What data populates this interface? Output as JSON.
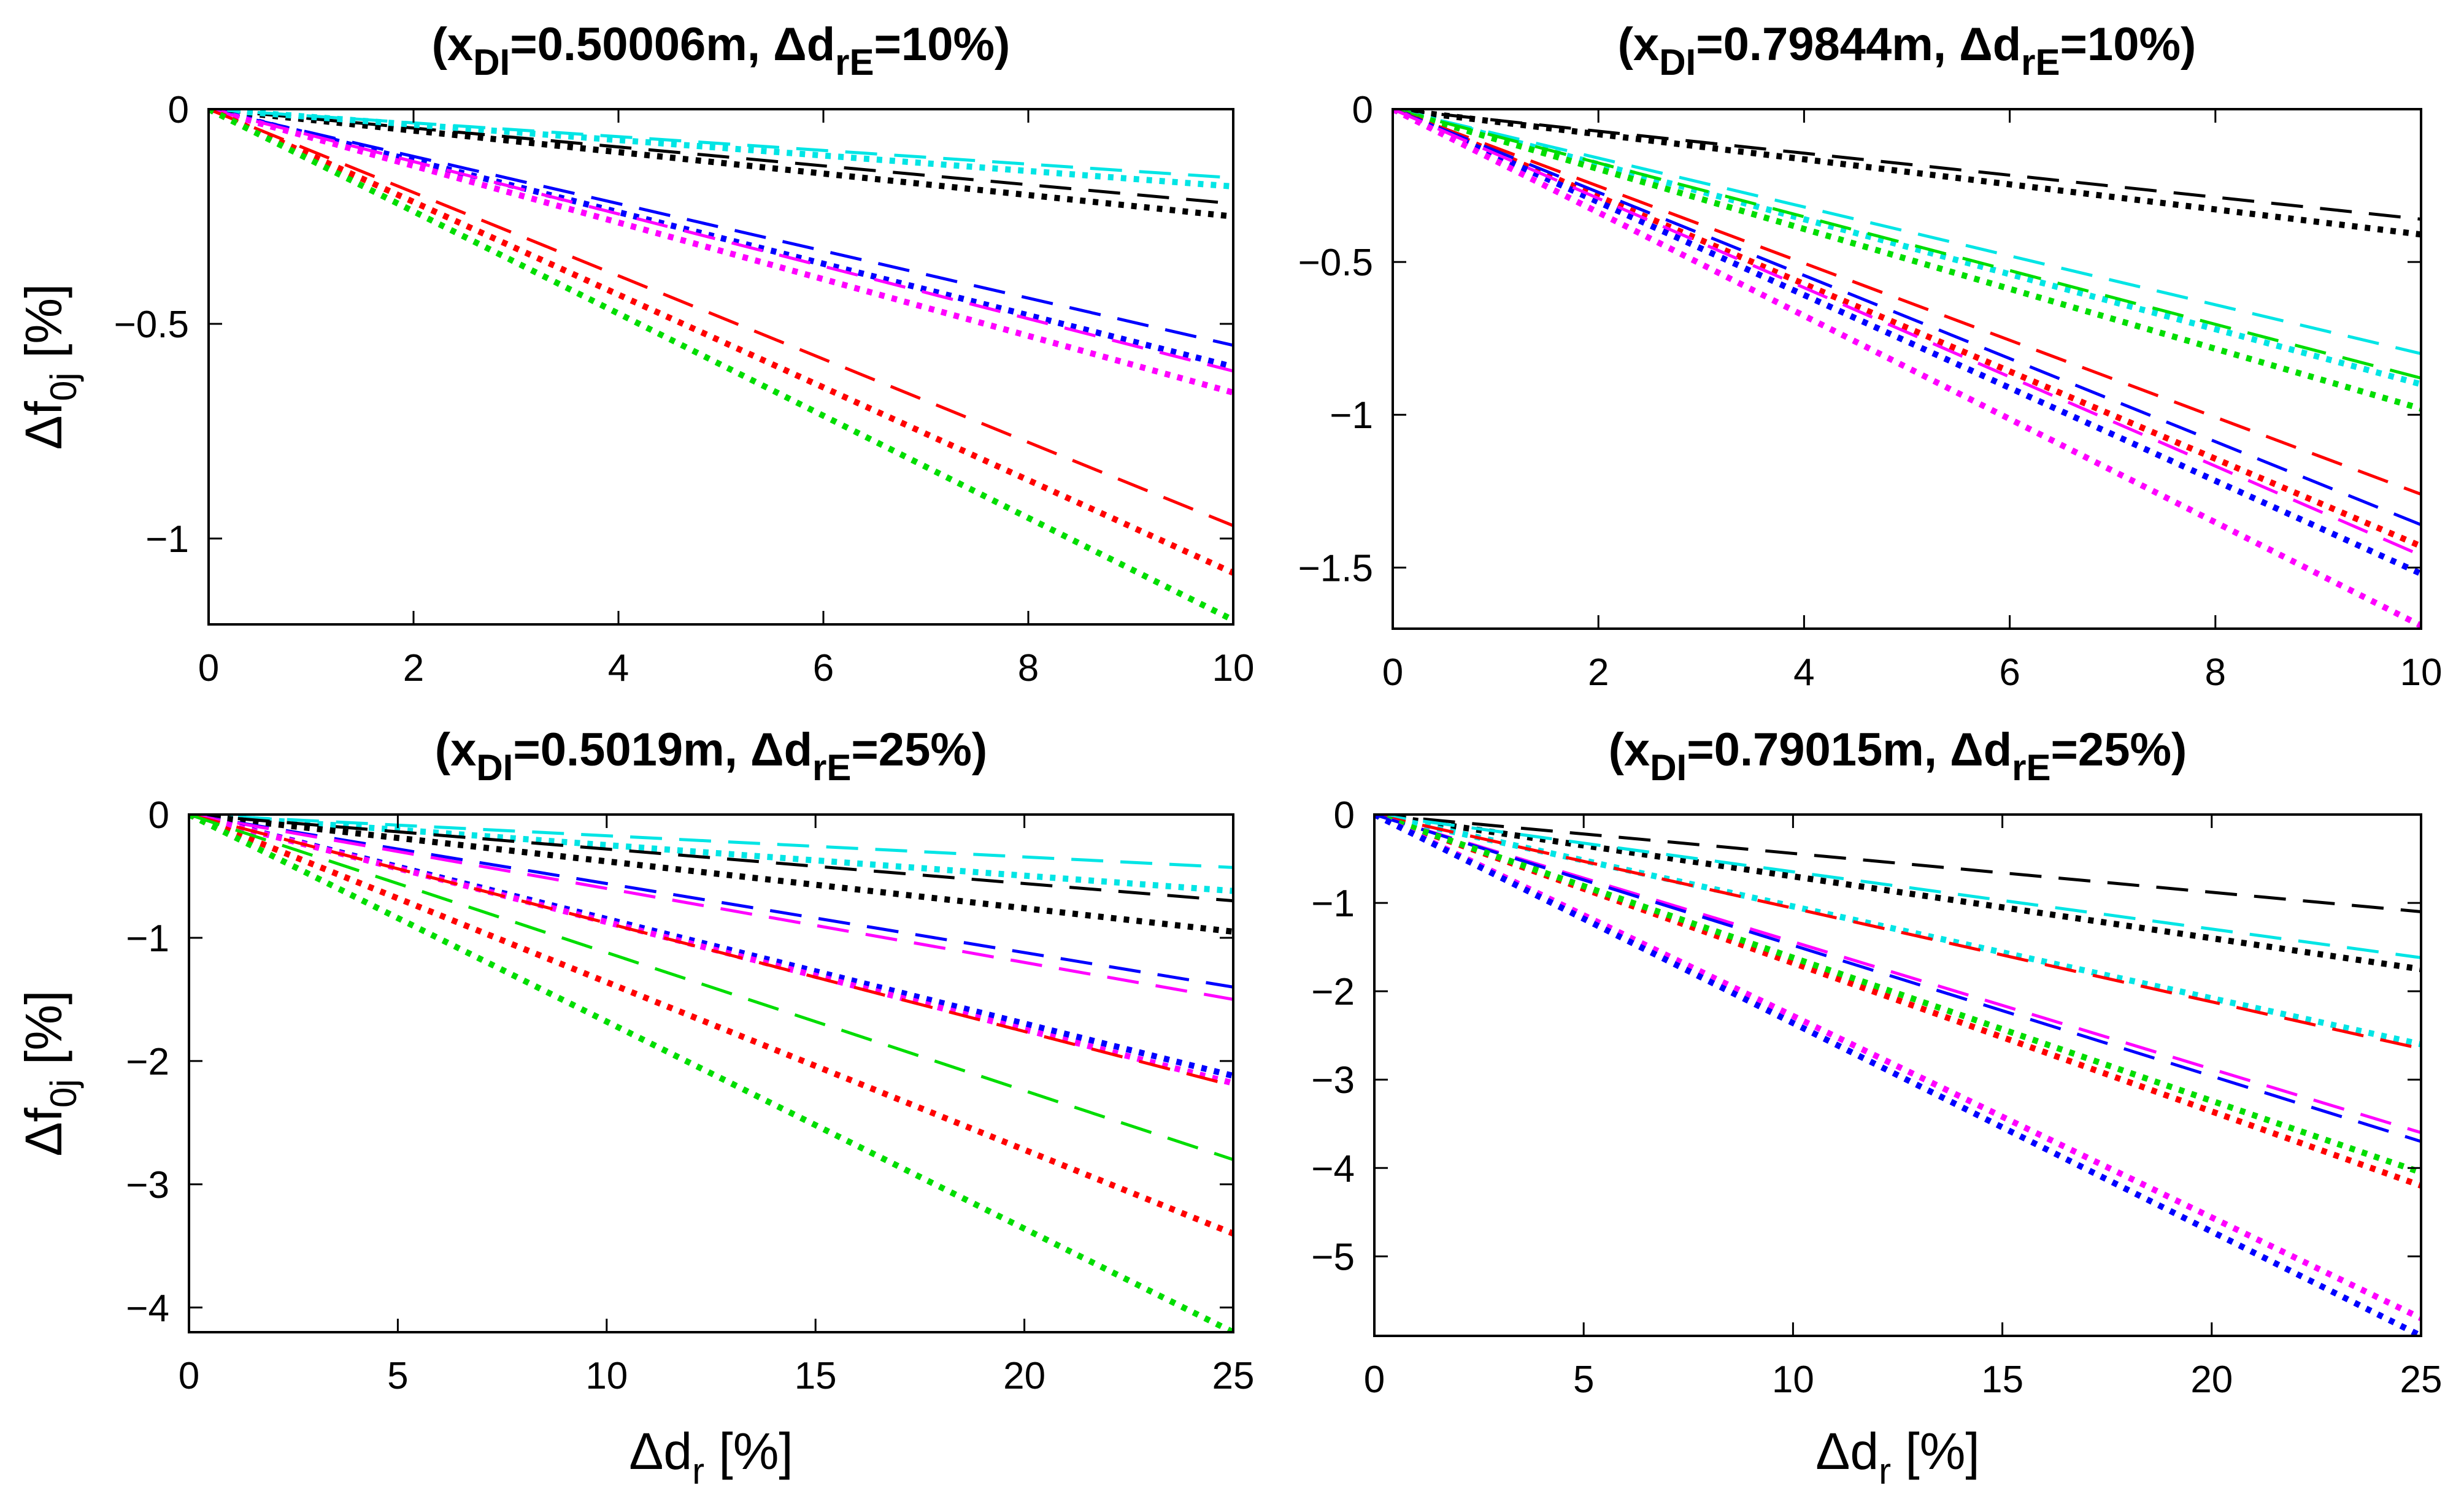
{
  "figure": {
    "ylabel_sym": "Δf",
    "ylabel_sub": "0j",
    "ylabel_unit": " [%]",
    "xlabel_sym": "Δd",
    "xlabel_sub": "r",
    "xlabel_unit": " [%]"
  },
  "colors": {
    "black": "#000000",
    "cyan": "#00e5e5",
    "blue": "#0000ff",
    "magenta": "#ff00ff",
    "red": "#ff0000",
    "green": "#00dd00"
  },
  "chart_data": [
    {
      "type": "line",
      "title": {
        "pre": "(x",
        "sub1": "DI",
        "mid": "=0.50006m, Δd",
        "sub2": "rE",
        "post": "=10%)"
      },
      "xlim": [
        0,
        10
      ],
      "ylim": [
        -1.2,
        0
      ],
      "xticks": [
        "0",
        "2",
        "4",
        "6",
        "8",
        "10"
      ],
      "xtick_values": [
        0,
        2,
        4,
        6,
        8,
        10
      ],
      "yticks": [
        "-1",
        "-0.5",
        "0"
      ],
      "ytick_values": [
        -1,
        -0.5,
        0
      ],
      "has_xlabel": false,
      "has_ylabel": true,
      "series": [
        {
          "color": "black",
          "style": "dashed",
          "x": [
            0,
            10
          ],
          "y": [
            0,
            -0.22
          ]
        },
        {
          "color": "black",
          "style": "dotted",
          "x": [
            0,
            10
          ],
          "y": [
            0,
            -0.25
          ]
        },
        {
          "color": "cyan",
          "style": "dashed",
          "x": [
            0,
            10
          ],
          "y": [
            0,
            -0.16
          ]
        },
        {
          "color": "cyan",
          "style": "dotted",
          "x": [
            0,
            10
          ],
          "y": [
            0,
            -0.18
          ]
        },
        {
          "color": "blue",
          "style": "dashed",
          "x": [
            0,
            10
          ],
          "y": [
            0,
            -0.55
          ]
        },
        {
          "color": "blue",
          "style": "dotted",
          "x": [
            0,
            10
          ],
          "y": [
            0,
            -0.6
          ]
        },
        {
          "color": "magenta",
          "style": "dashed",
          "x": [
            0,
            10
          ],
          "y": [
            0,
            -0.61
          ]
        },
        {
          "color": "magenta",
          "style": "dotted",
          "x": [
            0,
            10
          ],
          "y": [
            0,
            -0.66
          ]
        },
        {
          "color": "red",
          "style": "dashed",
          "x": [
            0,
            10
          ],
          "y": [
            0,
            -0.97
          ]
        },
        {
          "color": "red",
          "style": "dotted",
          "x": [
            0,
            10
          ],
          "y": [
            0,
            -1.08
          ]
        },
        {
          "color": "green",
          "style": "dotted",
          "x": [
            0,
            10
          ],
          "y": [
            0,
            -1.19
          ]
        }
      ]
    },
    {
      "type": "line",
      "title": {
        "pre": "(x",
        "sub1": "DI",
        "mid": "=0.79844m, Δd",
        "sub2": "rE",
        "post": "=10%)"
      },
      "xlim": [
        0,
        10
      ],
      "ylim": [
        -1.7,
        0
      ],
      "xticks": [
        "0",
        "2",
        "4",
        "6",
        "8",
        "10"
      ],
      "xtick_values": [
        0,
        2,
        4,
        6,
        8,
        10
      ],
      "yticks": [
        "-1.5",
        "-1",
        "-0.5",
        "0"
      ],
      "ytick_values": [
        -1.5,
        -1,
        -0.5,
        0
      ],
      "has_xlabel": false,
      "has_ylabel": false,
      "series": [
        {
          "color": "black",
          "style": "dashed",
          "x": [
            0,
            10
          ],
          "y": [
            0,
            -0.36
          ]
        },
        {
          "color": "black",
          "style": "dotted",
          "x": [
            0,
            10
          ],
          "y": [
            0,
            -0.41
          ]
        },
        {
          "color": "cyan",
          "style": "dashed",
          "x": [
            0,
            10
          ],
          "y": [
            0,
            -0.8
          ]
        },
        {
          "color": "cyan",
          "style": "dotted",
          "x": [
            0,
            10
          ],
          "y": [
            0,
            -0.9
          ]
        },
        {
          "color": "green",
          "style": "dashed",
          "x": [
            0,
            10
          ],
          "y": [
            0,
            -0.88
          ]
        },
        {
          "color": "green",
          "style": "dotted",
          "x": [
            0,
            10
          ],
          "y": [
            0,
            -0.98
          ]
        },
        {
          "color": "red",
          "style": "dashed",
          "x": [
            0,
            10
          ],
          "y": [
            0,
            -1.26
          ]
        },
        {
          "color": "red",
          "style": "dotted",
          "x": [
            0,
            10
          ],
          "y": [
            0,
            -1.43
          ]
        },
        {
          "color": "blue",
          "style": "dashed",
          "x": [
            0,
            10
          ],
          "y": [
            0,
            -1.36
          ]
        },
        {
          "color": "blue",
          "style": "dotted",
          "x": [
            0,
            10
          ],
          "y": [
            0,
            -1.52
          ]
        },
        {
          "color": "magenta",
          "style": "dashed",
          "x": [
            0,
            10
          ],
          "y": [
            0,
            -1.46
          ]
        },
        {
          "color": "magenta",
          "style": "dotted",
          "x": [
            0,
            10
          ],
          "y": [
            0,
            -1.69
          ]
        }
      ]
    },
    {
      "type": "line",
      "title": {
        "pre": "(x",
        "sub1": "DI",
        "mid": "=0.5019m, Δd",
        "sub2": "rE",
        "post": "=25%)"
      },
      "xlim": [
        0,
        25
      ],
      "ylim": [
        -4.2,
        0
      ],
      "xticks": [
        "0",
        "5",
        "10",
        "15",
        "20",
        "25"
      ],
      "xtick_values": [
        0,
        5,
        10,
        15,
        20,
        25
      ],
      "yticks": [
        "-4",
        "-3",
        "-2",
        "-1",
        "0"
      ],
      "ytick_values": [
        -4,
        -3,
        -2,
        -1,
        0
      ],
      "has_xlabel": true,
      "has_ylabel": true,
      "series": [
        {
          "color": "cyan",
          "style": "dashed",
          "x": [
            0,
            25
          ],
          "y": [
            0,
            -0.43
          ]
        },
        {
          "color": "cyan",
          "style": "dotted",
          "x": [
            0,
            25
          ],
          "y": [
            0,
            -0.62
          ]
        },
        {
          "color": "black",
          "style": "dashed",
          "x": [
            0,
            25
          ],
          "y": [
            0,
            -0.7
          ]
        },
        {
          "color": "black",
          "style": "dotted",
          "x": [
            0,
            25
          ],
          "y": [
            0,
            -0.95
          ]
        },
        {
          "color": "blue",
          "style": "dashed",
          "x": [
            0,
            25
          ],
          "y": [
            0,
            -1.4
          ]
        },
        {
          "color": "magenta",
          "style": "dashed",
          "x": [
            0,
            25
          ],
          "y": [
            0,
            -1.5
          ]
        },
        {
          "color": "blue",
          "style": "dotted",
          "x": [
            0,
            25
          ],
          "y": [
            0,
            -2.12
          ]
        },
        {
          "color": "magenta",
          "style": "dotted",
          "x": [
            0,
            25
          ],
          "y": [
            0,
            -2.18
          ]
        },
        {
          "color": "red",
          "style": "dashed",
          "x": [
            0,
            25
          ],
          "y": [
            0,
            -2.2
          ]
        },
        {
          "color": "red",
          "style": "dotted",
          "x": [
            0,
            25
          ],
          "y": [
            0,
            -3.4
          ]
        },
        {
          "color": "green",
          "style": "dashed",
          "x": [
            0,
            25
          ],
          "y": [
            0,
            -2.8
          ]
        },
        {
          "color": "green",
          "style": "dotted",
          "x": [
            0,
            25
          ],
          "y": [
            0,
            -4.2
          ]
        }
      ]
    },
    {
      "type": "line",
      "title": {
        "pre": "(x",
        "sub1": "DI",
        "mid": "=0.79015m, Δd",
        "sub2": "rE",
        "post": "=25%)"
      },
      "xlim": [
        0,
        25
      ],
      "ylim": [
        -5.9,
        0
      ],
      "xticks": [
        "0",
        "5",
        "10",
        "15",
        "20",
        "25"
      ],
      "xtick_values": [
        0,
        5,
        10,
        15,
        20,
        25
      ],
      "yticks": [
        "-5",
        "-4",
        "-3",
        "-2",
        "-1",
        "0"
      ],
      "ytick_values": [
        -5,
        -4,
        -3,
        -2,
        -1,
        0
      ],
      "has_xlabel": true,
      "has_ylabel": false,
      "series": [
        {
          "color": "black",
          "style": "dashed",
          "x": [
            0,
            25
          ],
          "y": [
            0,
            -1.1
          ]
        },
        {
          "color": "black",
          "style": "dotted",
          "x": [
            0,
            25
          ],
          "y": [
            0,
            -1.75
          ]
        },
        {
          "color": "cyan",
          "style": "dashed",
          "x": [
            0,
            25
          ],
          "y": [
            0,
            -1.62
          ]
        },
        {
          "color": "cyan",
          "style": "dotted",
          "x": [
            0,
            25
          ],
          "y": [
            0,
            -2.6
          ]
        },
        {
          "color": "red",
          "style": "dashed",
          "x": [
            0,
            25
          ],
          "y": [
            0,
            -2.65
          ]
        },
        {
          "color": "red",
          "style": "dotted",
          "x": [
            0,
            25
          ],
          "y": [
            0,
            -4.2
          ]
        },
        {
          "color": "magenta",
          "style": "dashed",
          "x": [
            0,
            25
          ],
          "y": [
            0,
            -3.6
          ]
        },
        {
          "color": "blue",
          "style": "dashed",
          "x": [
            0,
            25
          ],
          "y": [
            0,
            -3.7
          ]
        },
        {
          "color": "green",
          "style": "dotted",
          "x": [
            0,
            25
          ],
          "y": [
            0,
            -4.05
          ]
        },
        {
          "color": "magenta",
          "style": "dotted",
          "x": [
            0,
            25
          ],
          "y": [
            0,
            -5.7
          ]
        },
        {
          "color": "blue",
          "style": "dotted",
          "x": [
            0,
            25
          ],
          "y": [
            0,
            -5.9
          ]
        }
      ]
    }
  ]
}
